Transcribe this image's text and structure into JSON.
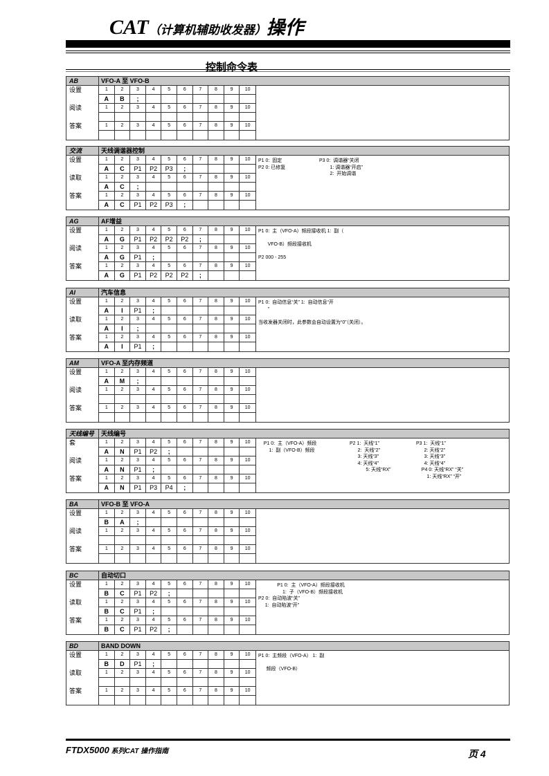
{
  "header": {
    "title_latin": "CAT",
    "title_sub": "（计算机辅助收发器）",
    "title_tail": "操作",
    "section_title": "控制命令表"
  },
  "footer": {
    "left_model": "FTDX5000",
    "left_text": " 系列CAT 操作指南",
    "page": "页 4"
  },
  "blocks": [
    {
      "code": "AB",
      "name": "VFO-A 至 VFO-B",
      "rows": [
        {
          "label": "设置",
          "values": [
            "A",
            "B",
            ";"
          ]
        },
        {
          "label": "阅读",
          "values": []
        },
        {
          "label": "答案",
          "values": []
        }
      ],
      "notes": []
    },
    {
      "code": "交流",
      "name": "天线调谐器控制",
      "rows": [
        {
          "label": "设置",
          "values": [
            "A",
            "C",
            "P1",
            "P2",
            "P3",
            ";"
          ]
        },
        {
          "label": "读取",
          "values": [
            "A",
            "C",
            ";"
          ]
        },
        {
          "label": "答案",
          "values": [
            "A",
            "C",
            "P1",
            "P2",
            "P3",
            ";"
          ]
        }
      ],
      "notes": [
        [
          "P1 0:  固定",
          "P2 0: 已修复"
        ],
        [
          "P3 0:  调谐器“关闭",
          "        1: 调谐器“开启”",
          "        2:  开始调谐"
        ]
      ]
    },
    {
      "code": "AG",
      "name": "AF增益",
      "rows": [
        {
          "label": "设置",
          "values": [
            "A",
            "G",
            "P1",
            "P2",
            "P2",
            "P2",
            ";"
          ]
        },
        {
          "label": "阅读",
          "values": [
            "A",
            "G",
            "P1",
            ";"
          ]
        },
        {
          "label": "答案",
          "values": [
            "A",
            "G",
            "P1",
            "P2",
            "P2",
            "P2",
            ";"
          ]
        }
      ],
      "notes": [
        [
          "P1 0:  主（VFO-A）频段接收机 1:  副（",
          "",
          "       VFO-B）频段接收机",
          "",
          "P2 000 - 255"
        ]
      ]
    },
    {
      "code": "AI",
      "name": "汽车信息",
      "rows": [
        {
          "label": "设置",
          "values": [
            "A",
            "I",
            "P1",
            ";"
          ]
        },
        {
          "label": "读取",
          "values": [
            "A",
            "I",
            ";"
          ]
        },
        {
          "label": "答案",
          "values": [
            "A",
            "I",
            "P1",
            ";"
          ]
        }
      ],
      "notes": [
        [
          "P1 0:  自动信息“关” 1:  自动信息“开",
          "       ”",
          "",
          "当收发器关闭时，此参数会自动设置为“0”（关闭）。"
        ]
      ]
    },
    {
      "code": "AM",
      "name": "VFO-A 至内存频道",
      "rows": [
        {
          "label": "设置",
          "values": [
            "A",
            "M",
            ";"
          ]
        },
        {
          "label": "阅读",
          "values": []
        },
        {
          "label": "答案",
          "values": []
        }
      ],
      "notes": []
    },
    {
      "code": "天线编号",
      "name": "天线编号",
      "rows": [
        {
          "label": "套",
          "values": [
            "A",
            "N",
            "P1",
            "P2",
            ";"
          ]
        },
        {
          "label": "阅读",
          "values": [
            "A",
            "N",
            "P1",
            ";"
          ]
        },
        {
          "label": "答案",
          "values": [
            "A",
            "N",
            "P1",
            "P3",
            "P4",
            ";"
          ]
        }
      ],
      "notes": [
        [
          "    P1 0:  主（VFO-A）频段",
          "        1:  副（VFO-B）频段"
        ],
        [
          "P2 1:  天线“1”",
          "      2:  天线“2”",
          "      3: 天线“3”",
          "      4: 天线“4”",
          "            5: 天线“RX”"
        ],
        [
          "P3 1:  天线“1”",
          "      2: 天线“2”",
          "      3: 天线“3”",
          "      4: 天线“4”",
          "    P4 0: 天线“RX” “关”",
          "        1: 天线“RX” “开”"
        ]
      ]
    },
    {
      "code": "BA",
      "name": "VFO-B 至 VFO-A",
      "rows": [
        {
          "label": "设置",
          "values": [
            "B",
            "A",
            ";"
          ]
        },
        {
          "label": "阅读",
          "values": []
        },
        {
          "label": "答案",
          "values": []
        }
      ],
      "notes": []
    },
    {
      "code": "BC",
      "name": "自动切口",
      "rows": [
        {
          "label": "设置",
          "values": [
            "B",
            "C",
            "P1",
            "P2",
            ";"
          ]
        },
        {
          "label": "读取",
          "values": [
            "B",
            "C",
            "P1",
            ";"
          ]
        },
        {
          "label": "答案",
          "values": [
            "B",
            "C",
            "P1",
            "P2",
            ";"
          ]
        }
      ],
      "notes": [
        [
          "              P1 0:  主（VFO-A）频段接收机",
          "                  1:  子（VFO-B）频段接收机",
          "P2 0:  自动陷波“关”",
          "     1:  自动陷波“开”"
        ]
      ]
    },
    {
      "code": "BD",
      "name": "BAND DOWN",
      "rows": [
        {
          "label": "设置",
          "values": [
            "B",
            "D",
            "P1",
            ";"
          ]
        },
        {
          "label": "读取",
          "values": []
        },
        {
          "label": "答案",
          "values": []
        }
      ],
      "notes": [
        [
          "P1 0:  主频段（VFO-A） 1:  副",
          "",
          "      频段（VFO-B）"
        ]
      ]
    }
  ]
}
